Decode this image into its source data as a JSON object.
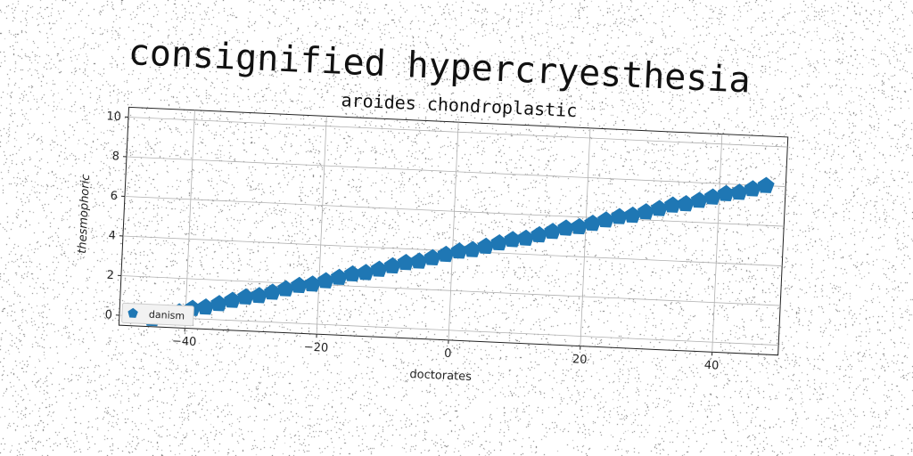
{
  "suptitle": "consignified hypercryesthesia",
  "chart_data": {
    "type": "scatter",
    "title": "aroides chondroplastic",
    "xlabel": "doctorates",
    "ylabel": "thesmophoric",
    "xlim": [
      -50,
      50
    ],
    "ylim": [
      -0.5,
      10.5
    ],
    "xticks": [
      -40,
      -20,
      0,
      20,
      40
    ],
    "yticks": [
      0,
      2,
      4,
      6,
      8,
      10
    ],
    "grid": true,
    "legend": {
      "placement": "lower-left",
      "entries": [
        "danism"
      ]
    },
    "colors": {
      "series": "#1f77b4"
    },
    "series": [
      {
        "name": "danism",
        "marker": "pentagon",
        "x": [
          -45,
          -43,
          -41,
          -39,
          -37,
          -35,
          -33,
          -31,
          -29,
          -27,
          -25,
          -23,
          -21,
          -19,
          -17,
          -15,
          -13,
          -11,
          -9,
          -7,
          -5,
          -3,
          -1,
          1,
          3,
          5,
          7,
          9,
          11,
          13,
          15,
          17,
          19,
          21,
          23,
          25,
          27,
          29,
          31,
          33,
          35,
          37,
          39,
          41,
          43,
          45,
          47
        ],
        "y": [
          -0.1,
          0.1,
          0.3,
          0.5,
          0.6,
          0.8,
          1.0,
          1.2,
          1.3,
          1.5,
          1.7,
          1.9,
          2.0,
          2.2,
          2.4,
          2.6,
          2.7,
          2.9,
          3.1,
          3.3,
          3.4,
          3.6,
          3.8,
          4.0,
          4.1,
          4.3,
          4.5,
          4.7,
          4.8,
          5.0,
          5.2,
          5.4,
          5.5,
          5.7,
          5.9,
          6.1,
          6.2,
          6.4,
          6.6,
          6.8,
          6.9,
          7.1,
          7.3,
          7.5,
          7.6,
          7.8,
          8.0
        ]
      }
    ]
  }
}
